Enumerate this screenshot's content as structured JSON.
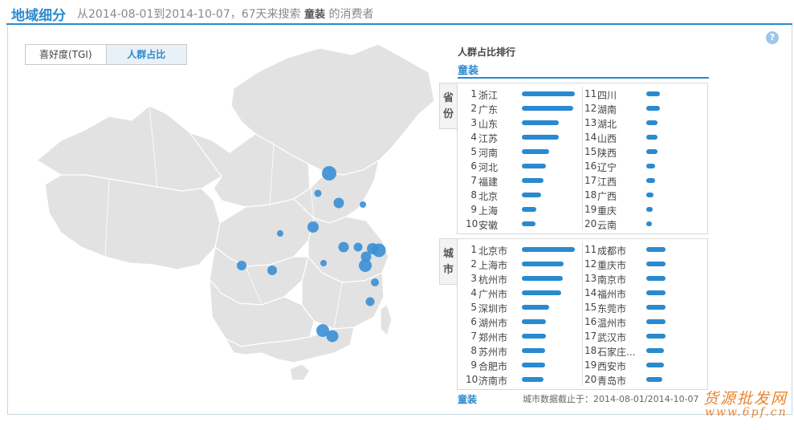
{
  "header": {
    "title": "地域细分",
    "subtitle_prefix": "从2014-08-01到2014-10-07，67天来搜索",
    "keyword": "童装",
    "subtitle_suffix": "的消费者"
  },
  "help_icon": "?",
  "tabs": [
    {
      "label": "喜好度(TGI)",
      "active": false
    },
    {
      "label": "人群占比",
      "active": true
    }
  ],
  "ranking": {
    "title": "人群占比排行",
    "category": "童装",
    "province_label": [
      "省",
      "份"
    ],
    "city_label": [
      "城",
      "市"
    ],
    "provinces": [
      {
        "rank": "1",
        "name": "浙江",
        "value": 1.0
      },
      {
        "rank": "2",
        "name": "广东",
        "value": 0.97
      },
      {
        "rank": "3",
        "name": "山东",
        "value": 0.69
      },
      {
        "rank": "4",
        "name": "江苏",
        "value": 0.69
      },
      {
        "rank": "5",
        "name": "河南",
        "value": 0.52
      },
      {
        "rank": "6",
        "name": "河北",
        "value": 0.46
      },
      {
        "rank": "7",
        "name": "福建",
        "value": 0.41
      },
      {
        "rank": "8",
        "name": "北京",
        "value": 0.37
      },
      {
        "rank": "9",
        "name": "上海",
        "value": 0.28
      },
      {
        "rank": "10",
        "name": "安徽",
        "value": 0.26
      },
      {
        "rank": "11",
        "name": "四川",
        "value": 0.26
      },
      {
        "rank": "12",
        "name": "湖南",
        "value": 0.26
      },
      {
        "rank": "13",
        "name": "湖北",
        "value": 0.21
      },
      {
        "rank": "14",
        "name": "山西",
        "value": 0.21
      },
      {
        "rank": "15",
        "name": "陕西",
        "value": 0.21
      },
      {
        "rank": "16",
        "name": "辽宁",
        "value": 0.16
      },
      {
        "rank": "17",
        "name": "江西",
        "value": 0.16
      },
      {
        "rank": "18",
        "name": "广西",
        "value": 0.13
      },
      {
        "rank": "19",
        "name": "重庆",
        "value": 0.12
      },
      {
        "rank": "20",
        "name": "云南",
        "value": 0.1
      }
    ],
    "cities": [
      {
        "rank": "1",
        "name": "北京市",
        "value": 1.0
      },
      {
        "rank": "2",
        "name": "上海市",
        "value": 0.79
      },
      {
        "rank": "3",
        "name": "杭州市",
        "value": 0.77
      },
      {
        "rank": "4",
        "name": "广州市",
        "value": 0.74
      },
      {
        "rank": "5",
        "name": "深圳市",
        "value": 0.52
      },
      {
        "rank": "6",
        "name": "湖州市",
        "value": 0.46
      },
      {
        "rank": "7",
        "name": "郑州市",
        "value": 0.46
      },
      {
        "rank": "8",
        "name": "苏州市",
        "value": 0.44
      },
      {
        "rank": "9",
        "name": "合肥市",
        "value": 0.44
      },
      {
        "rank": "10",
        "name": "济南市",
        "value": 0.41
      },
      {
        "rank": "11",
        "name": "成都市",
        "value": 0.36
      },
      {
        "rank": "12",
        "name": "重庆市",
        "value": 0.36
      },
      {
        "rank": "13",
        "name": "南京市",
        "value": 0.36
      },
      {
        "rank": "14",
        "name": "福州市",
        "value": 0.36
      },
      {
        "rank": "15",
        "name": "东莞市",
        "value": 0.36
      },
      {
        "rank": "16",
        "name": "温州市",
        "value": 0.36
      },
      {
        "rank": "17",
        "name": "武汉市",
        "value": 0.36
      },
      {
        "rank": "18",
        "name": "石家庄...",
        "value": 0.34
      },
      {
        "rank": "19",
        "name": "西安市",
        "value": 0.34
      },
      {
        "rank": "20",
        "name": "青岛市",
        "value": 0.31
      }
    ]
  },
  "footer": {
    "category": "童装",
    "note": "城市数据截止于：2014-08-01/2014-10-07"
  },
  "watermark": {
    "line1": "货源批发网",
    "line2": "www.6pf.cn"
  },
  "colors": {
    "accent": "#2a8ad0",
    "map_fill": "#e2e2e2",
    "bubble": "#3a8fd6"
  }
}
